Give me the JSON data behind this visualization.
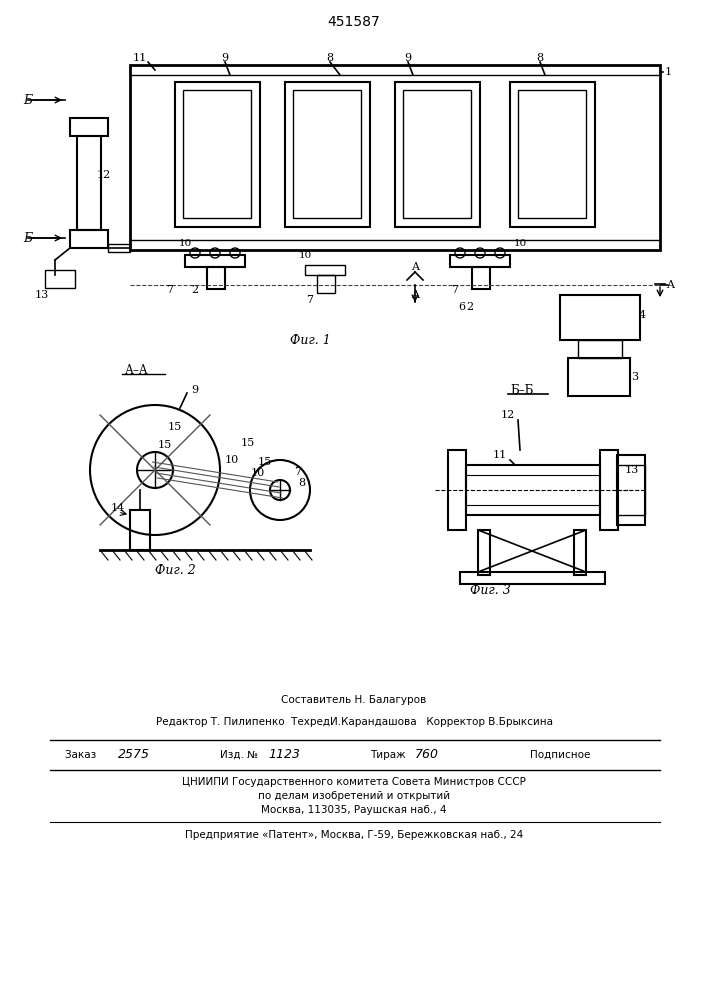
{
  "patent_number": "451587",
  "background_color": "#ffffff",
  "line_color": "#000000",
  "fig_width": 7.07,
  "fig_height": 10.0,
  "footer_lines": [
    "Составитель Н. Балагуров",
    "Редактор Т. Пилипенко  ТехредИ.Карандашова   Корректор В.Брыксина",
    "Заказ 2575       Изд. № 1123       Тираж 760       Подписное",
    "ЦНИИПИ Государственного комитета Совета Министров СССР",
    "по делам изобретений и открытий",
    "Москва, 113035, Раушская наб., 4",
    "Предприятие «Патент», Москва, Г-59, Бережковская наб., 24"
  ]
}
